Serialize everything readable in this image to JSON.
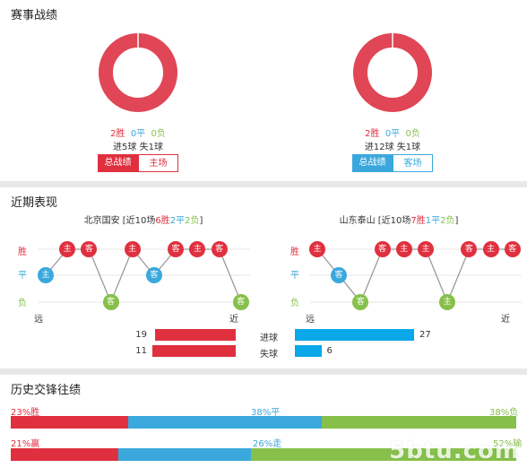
{
  "sections": {
    "record_title": "赛事战绩",
    "recent_title": "近期表现",
    "h2h_title": "历史交锋往绩"
  },
  "colors": {
    "red": "#e0303f",
    "blue": "#3aa8dc",
    "green": "#86c04a",
    "cyan": "#0aa8e8"
  },
  "left_record": {
    "win": "2胜",
    "draw": "0平",
    "loss": "0负",
    "goals": "进5球",
    "conceded": "失1球",
    "tab_active": "总战绩",
    "tab_inactive": "主场",
    "win_fraction": 1.0
  },
  "right_record": {
    "win": "2胜",
    "draw": "0平",
    "loss": "0负",
    "goals": "进12球",
    "conceded": "失1球",
    "tab_active": "总战绩",
    "tab_inactive": "客场",
    "win_fraction": 1.0
  },
  "recent": {
    "axis_labels": [
      "胜",
      "平",
      "负"
    ],
    "far": "远",
    "near": "近",
    "left_team": {
      "name": "北京国安",
      "summary_pre": " [近10场",
      "wins": "6胜",
      "draws": "2平",
      "losses": "2负",
      "summary_post": "]",
      "results": [
        {
          "r": "D",
          "v": "主"
        },
        {
          "r": "W",
          "v": "主"
        },
        {
          "r": "W",
          "v": "客"
        },
        {
          "r": "L",
          "v": "客"
        },
        {
          "r": "W",
          "v": "主"
        },
        {
          "r": "D",
          "v": "客"
        },
        {
          "r": "W",
          "v": "客"
        },
        {
          "r": "W",
          "v": "主"
        },
        {
          "r": "W",
          "v": "客"
        },
        {
          "r": "L",
          "v": "客"
        }
      ]
    },
    "right_team": {
      "name": "山东泰山",
      "summary_pre": " [近10场",
      "wins": "7胜",
      "draws": "1平",
      "losses": "2负",
      "summary_post": "]",
      "results": [
        {
          "r": "W",
          "v": "主"
        },
        {
          "r": "D",
          "v": "客"
        },
        {
          "r": "L",
          "v": "客"
        },
        {
          "r": "W",
          "v": "客"
        },
        {
          "r": "W",
          "v": "主"
        },
        {
          "r": "W",
          "v": "主"
        },
        {
          "r": "L",
          "v": "主"
        },
        {
          "r": "W",
          "v": "客"
        },
        {
          "r": "W",
          "v": "主"
        },
        {
          "r": "W",
          "v": "客"
        }
      ]
    },
    "goals_label": "进球",
    "conceded_label": "失球",
    "left_goals": 19,
    "left_conceded": 11,
    "right_goals": 27,
    "right_conceded": 6
  },
  "h2h": {
    "row1": {
      "left": "23%胜",
      "mid": "38%平",
      "right": "38%负",
      "parts": [
        23,
        38,
        38
      ]
    },
    "row2": {
      "left": "21%赢",
      "mid": "26%走",
      "right": "52%输",
      "parts": [
        21,
        26,
        52
      ]
    }
  },
  "watermark": "5btu.com"
}
